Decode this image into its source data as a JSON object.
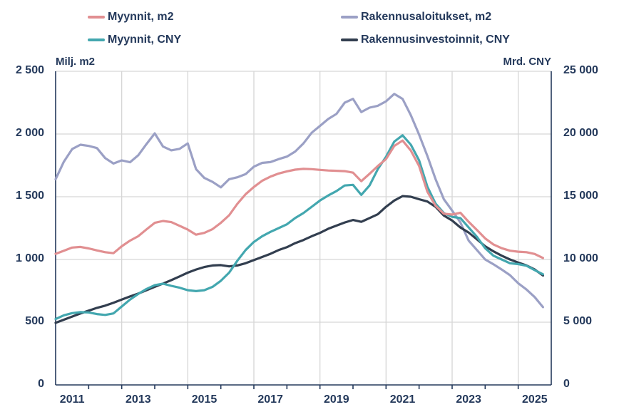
{
  "accent_colors": {
    "text_navy": "#24395B",
    "gridline_gray": "#D6D6D6",
    "background": "#FFFFFF"
  },
  "legend": {
    "items": [
      {
        "label": "Myynnit, m2"
      },
      {
        "label": "Myynnit, CNY"
      },
      {
        "label": "Rakennusaloitukset, m2"
      },
      {
        "label": "Rakennusinvestoinnit, CNY"
      }
    ]
  },
  "axes": {
    "left": {
      "title": "Milj. m2",
      "max": 2500,
      "tick_labels": [
        "2 500",
        "2 000",
        "1 500",
        "1 000",
        "500",
        "0"
      ],
      "tick_values": [
        2500,
        2000,
        1500,
        1000,
        500,
        0
      ]
    },
    "right": {
      "title": "Mrd. CNY",
      "max": 25000,
      "tick_labels": [
        "25 000",
        "20 000",
        "15 000",
        "10 000",
        "5 000",
        "0"
      ],
      "tick_values": [
        25000,
        20000,
        15000,
        10000,
        5000,
        0
      ]
    },
    "x": {
      "min": 2011,
      "max": 2026,
      "labels": [
        "2011",
        "2013",
        "2015",
        "2017",
        "2019",
        "2021",
        "2023",
        "2025"
      ],
      "label_years": [
        2011,
        2013,
        2015,
        2017,
        2019,
        2021,
        2023,
        2025
      ],
      "tick_years": [
        2012,
        2013,
        2014,
        2015,
        2016,
        2017,
        2018,
        2019,
        2020,
        2021,
        2022,
        2023,
        2024,
        2025
      ],
      "gridline_years": [
        2013,
        2015,
        2017,
        2019,
        2021,
        2023,
        2025
      ],
      "grid_values_left": [
        2500,
        2000,
        1500,
        1000,
        500
      ]
    }
  },
  "chart_data": {
    "type": "line",
    "title": "",
    "x_unit": "year (monthly-style series, quarterly sampled)",
    "x": [
      2011.0,
      2011.25,
      2011.5,
      2011.75,
      2012.0,
      2012.25,
      2012.5,
      2012.75,
      2013.0,
      2013.25,
      2013.5,
      2013.75,
      2014.0,
      2014.25,
      2014.5,
      2014.75,
      2015.0,
      2015.25,
      2015.5,
      2015.75,
      2016.0,
      2016.25,
      2016.5,
      2016.75,
      2017.0,
      2017.25,
      2017.5,
      2017.75,
      2018.0,
      2018.25,
      2018.5,
      2018.75,
      2019.0,
      2019.25,
      2019.5,
      2019.75,
      2020.0,
      2020.25,
      2020.5,
      2020.75,
      2021.0,
      2021.25,
      2021.5,
      2021.75,
      2022.0,
      2022.25,
      2022.5,
      2022.75,
      2023.0,
      2023.25,
      2023.5,
      2023.75,
      2024.0,
      2024.25,
      2024.5,
      2024.75,
      2025.0,
      2025.25,
      2025.5,
      2025.75
    ],
    "series": [
      {
        "name": "Rakennusaloitukset, m2",
        "axis": "left",
        "unit": "Milj. m2",
        "color": "#9BA0C5",
        "values": [
          1640,
          1780,
          1880,
          1915,
          1905,
          1888,
          1808,
          1765,
          1790,
          1775,
          1830,
          1920,
          2005,
          1900,
          1870,
          1882,
          1925,
          1720,
          1650,
          1618,
          1575,
          1640,
          1655,
          1680,
          1740,
          1770,
          1776,
          1800,
          1820,
          1860,
          1925,
          2010,
          2065,
          2120,
          2160,
          2250,
          2280,
          2175,
          2210,
          2225,
          2260,
          2320,
          2280,
          2150,
          1995,
          1825,
          1640,
          1480,
          1390,
          1295,
          1150,
          1075,
          1000,
          962,
          920,
          875,
          810,
          760,
          700,
          620
        ]
      },
      {
        "name": "Rakennusinvestoinnit, CNY",
        "axis": "right",
        "unit": "Mrd. CNY",
        "color": "#323E4F",
        "values": [
          4950,
          5200,
          5450,
          5700,
          5920,
          6140,
          6320,
          6550,
          6800,
          7050,
          7280,
          7550,
          7820,
          8080,
          8350,
          8650,
          8950,
          9200,
          9400,
          9520,
          9550,
          9450,
          9520,
          9700,
          9950,
          10200,
          10450,
          10750,
          10980,
          11300,
          11550,
          11850,
          12120,
          12450,
          12700,
          12950,
          13150,
          13000,
          13300,
          13600,
          14200,
          14700,
          15050,
          15000,
          14800,
          14620,
          14200,
          13500,
          13100,
          12550,
          12150,
          11600,
          11050,
          10650,
          10300,
          10000,
          9750,
          9520,
          9200,
          8720
        ]
      },
      {
        "name": "Myynnit, CNY",
        "axis": "right",
        "unit": "Mrd. CNY",
        "color": "#43A7AF",
        "values": [
          5250,
          5550,
          5720,
          5800,
          5780,
          5650,
          5580,
          5700,
          6250,
          6800,
          7250,
          7650,
          7950,
          8070,
          7900,
          7750,
          7550,
          7480,
          7550,
          7820,
          8300,
          8950,
          9900,
          10750,
          11400,
          11850,
          12200,
          12500,
          12800,
          13300,
          13700,
          14200,
          14700,
          15100,
          15450,
          15900,
          15950,
          15150,
          15900,
          17200,
          18180,
          19400,
          19900,
          19150,
          17900,
          15800,
          14450,
          13700,
          13400,
          13300,
          12550,
          11800,
          10900,
          10300,
          10000,
          9700,
          9630,
          9500,
          9150,
          8820
        ]
      },
      {
        "name": "Myynnit, m2",
        "axis": "left",
        "unit": "Milj. m2",
        "color": "#E18F91",
        "values": [
          1045,
          1070,
          1095,
          1100,
          1088,
          1072,
          1058,
          1050,
          1105,
          1150,
          1185,
          1240,
          1292,
          1307,
          1298,
          1268,
          1238,
          1198,
          1212,
          1242,
          1292,
          1352,
          1443,
          1520,
          1578,
          1627,
          1660,
          1685,
          1702,
          1716,
          1722,
          1720,
          1714,
          1709,
          1707,
          1704,
          1692,
          1624,
          1683,
          1745,
          1800,
          1905,
          1948,
          1868,
          1745,
          1540,
          1428,
          1365,
          1358,
          1372,
          1300,
          1235,
          1168,
          1120,
          1090,
          1070,
          1062,
          1058,
          1044,
          1012
        ]
      }
    ],
    "legend_position": "top",
    "grid": true,
    "ylim_left": [
      0,
      2500
    ],
    "ylim_right": [
      0,
      25000
    ]
  }
}
